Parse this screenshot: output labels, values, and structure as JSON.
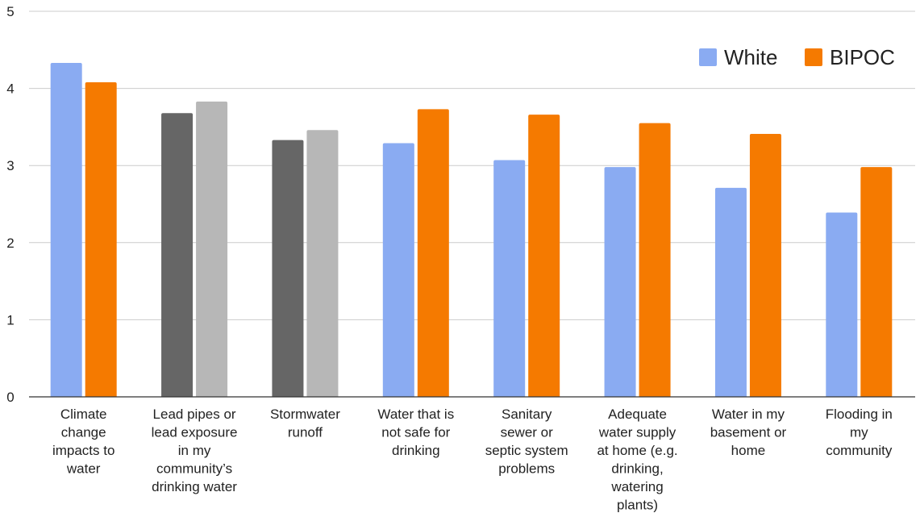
{
  "chart_data": {
    "type": "bar",
    "categories": [
      [
        "Climate",
        "change",
        "impacts to",
        "water"
      ],
      [
        "Lead pipes or",
        "lead exposure",
        "in my",
        "community’s",
        "drinking water"
      ],
      [
        "Stormwater",
        "runoff"
      ],
      [
        "Water that is",
        "not safe for",
        "drinking"
      ],
      [
        "Sanitary",
        "sewer  or",
        "septic system",
        "problems"
      ],
      [
        "Adequate",
        "water supply",
        "at home (e.g.",
        "drinking,",
        "watering",
        "plants)"
      ],
      [
        "Water in my",
        "basement or",
        "home"
      ],
      [
        "Flooding in",
        "my",
        "community"
      ]
    ],
    "series": [
      {
        "name": "White",
        "color": "#8aabf2",
        "values": [
          4.33,
          3.68,
          3.33,
          3.29,
          3.07,
          2.98,
          2.71,
          2.39
        ]
      },
      {
        "name": "BIPOC",
        "color": "#f57a00",
        "values": [
          4.08,
          3.83,
          3.46,
          3.73,
          3.66,
          3.55,
          3.41,
          2.98
        ]
      }
    ],
    "highlighted_category_colors": {
      "1": [
        "#666666",
        "#b7b7b7"
      ],
      "2": [
        "#666666",
        "#b7b7b7"
      ]
    },
    "yticks": [
      "0",
      "1",
      "2",
      "3",
      "4",
      "5"
    ],
    "ylim": [
      0,
      5
    ],
    "grid": true,
    "legend_position": "top-right",
    "title": "",
    "xlabel": "",
    "ylabel": ""
  }
}
